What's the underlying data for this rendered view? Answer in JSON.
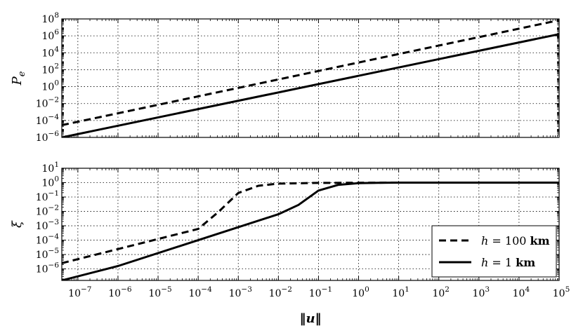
{
  "chart_data": [
    {
      "type": "line",
      "ylabel": "P_e",
      "xlim": [
        -7.4,
        5
      ],
      "ylim": [
        -6,
        8
      ],
      "yscale": "log",
      "xscale": "log",
      "grid": true,
      "yticks": [
        {
          "exp": -6,
          "text": "10",
          "sup": "−6"
        },
        {
          "exp": -4,
          "text": "10",
          "sup": "−4"
        },
        {
          "exp": -2,
          "text": "10",
          "sup": "−2"
        },
        {
          "exp": 0,
          "text": "10",
          "sup": "0"
        },
        {
          "exp": 2,
          "text": "10",
          "sup": "2"
        },
        {
          "exp": 4,
          "text": "10",
          "sup": "4"
        },
        {
          "exp": 6,
          "text": "10",
          "sup": "6"
        },
        {
          "exp": 8,
          "text": "10",
          "sup": "8"
        }
      ],
      "series": [
        {
          "name": "h = 100 km",
          "style": "dashed",
          "x_log10": [
            -7.4,
            5
          ],
          "y_log10": [
            -4.55,
            7.85
          ]
        },
        {
          "name": "h = 1 km",
          "style": "solid",
          "x_log10": [
            -7.4,
            5
          ],
          "y_log10": [
            -6.0,
            6.2
          ]
        }
      ]
    },
    {
      "type": "line",
      "ylabel": "ξ",
      "xlabel": "‖u‖",
      "xlim": [
        -7.4,
        5
      ],
      "ylim": [
        -6.8,
        1
      ],
      "yscale": "log",
      "xscale": "log",
      "grid": true,
      "legend": "lower-right",
      "xticks": [
        {
          "exp": -7,
          "text": "10",
          "sup": "−7"
        },
        {
          "exp": -6,
          "text": "10",
          "sup": "−6"
        },
        {
          "exp": -5,
          "text": "10",
          "sup": "−5"
        },
        {
          "exp": -4,
          "text": "10",
          "sup": "−4"
        },
        {
          "exp": -3,
          "text": "10",
          "sup": "−3"
        },
        {
          "exp": -2,
          "text": "10",
          "sup": "−2"
        },
        {
          "exp": -1,
          "text": "10",
          "sup": "−1"
        },
        {
          "exp": 0,
          "text": "10",
          "sup": "0"
        },
        {
          "exp": 1,
          "text": "10",
          "sup": "1"
        },
        {
          "exp": 2,
          "text": "10",
          "sup": "2"
        },
        {
          "exp": 3,
          "text": "10",
          "sup": "3"
        },
        {
          "exp": 4,
          "text": "10",
          "sup": "4"
        },
        {
          "exp": 5,
          "text": "10",
          "sup": "5"
        }
      ],
      "yticks": [
        {
          "exp": -6,
          "text": "10",
          "sup": "−6"
        },
        {
          "exp": -5,
          "text": "10",
          "sup": "−5"
        },
        {
          "exp": -4,
          "text": "10",
          "sup": "−4"
        },
        {
          "exp": -3,
          "text": "10",
          "sup": "−3"
        },
        {
          "exp": -2,
          "text": "10",
          "sup": "−2"
        },
        {
          "exp": -1,
          "text": "10",
          "sup": "−1"
        },
        {
          "exp": 0,
          "text": "10",
          "sup": "0"
        },
        {
          "exp": 1,
          "text": "10",
          "sup": "1"
        }
      ],
      "series": [
        {
          "name": "h = 100 km",
          "style": "dashed",
          "x_log10": [
            -7.4,
            -6.0,
            -5.0,
            -4.0,
            -3.5,
            -3.0,
            -2.5,
            -2.0,
            -1.0,
            0.0,
            1.0,
            5.0
          ],
          "y_log10": [
            -5.6,
            -4.62,
            -3.92,
            -3.22,
            -2.05,
            -0.72,
            -0.22,
            -0.07,
            -0.02,
            -0.01,
            0.0,
            0.0
          ]
        },
        {
          "name": "h = 1 km",
          "style": "solid",
          "x_log10": [
            -7.4,
            -6.0,
            -4.0,
            -2.0,
            -1.5,
            -1.0,
            -0.5,
            0.0,
            0.5,
            1.0,
            5.0
          ],
          "y_log10": [
            -6.8,
            -5.8,
            -4.0,
            -2.2,
            -1.55,
            -0.55,
            -0.15,
            -0.04,
            -0.01,
            0.0,
            0.0
          ]
        }
      ]
    }
  ],
  "legend": {
    "entries": [
      {
        "var": "h",
        "rest": " = 100 ",
        "unit": "km",
        "style": "dashed"
      },
      {
        "var": "h",
        "rest": " = 1 ",
        "unit": "km",
        "style": "solid"
      }
    ]
  }
}
